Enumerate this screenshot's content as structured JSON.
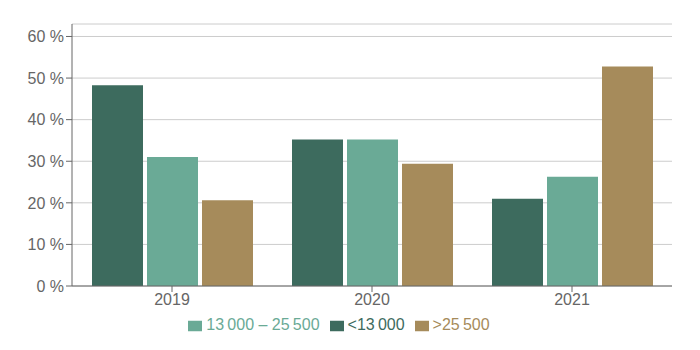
{
  "chart_data": {
    "type": "bar",
    "categories": [
      "2019",
      "2020",
      "2021"
    ],
    "series": [
      {
        "name": "<13 000",
        "color": "#3d6b5e",
        "values": [
          0.483,
          0.352,
          0.21
        ]
      },
      {
        "name": "13 000 – 25 500",
        "color": "#6aaa96",
        "values": [
          0.31,
          0.352,
          0.263
        ]
      },
      {
        "name": ">25 500",
        "color": "#a68b5b",
        "values": [
          0.206,
          0.294,
          0.528
        ]
      }
    ],
    "ylim": [
      0,
      0.63
    ],
    "yticks": [
      {
        "value": 0.0,
        "label": "0 %"
      },
      {
        "value": 0.1,
        "label": "10 %"
      },
      {
        "value": 0.2,
        "label": "20 %"
      },
      {
        "value": 0.3,
        "label": "30 %"
      },
      {
        "value": 0.4,
        "label": "40 %"
      },
      {
        "value": 0.5,
        "label": "50 %"
      },
      {
        "value": 0.6,
        "label": "60 %"
      }
    ],
    "grid": true,
    "legend": "bottom"
  }
}
